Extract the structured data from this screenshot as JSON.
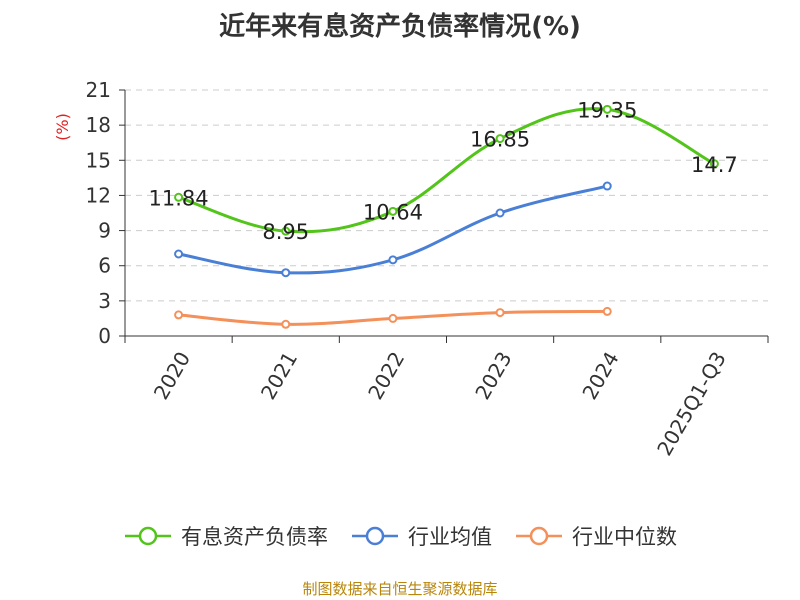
{
  "chart_data": {
    "type": "line",
    "title": "近年来有息资产负债率情况(%)",
    "ylabel": "(%)",
    "categories": [
      "2020",
      "2021",
      "2022",
      "2023",
      "2024",
      "2025Q1-Q3"
    ],
    "ylim": [
      0,
      21
    ],
    "yticks": [
      0,
      3,
      6,
      9,
      12,
      15,
      18,
      21
    ],
    "grid": "horizontal dashed",
    "legend_position": "bottom",
    "series": [
      {
        "name": "有息资产负债率",
        "color": "#52c41a",
        "values": [
          11.84,
          8.95,
          10.64,
          16.85,
          19.35,
          14.7
        ],
        "labels": [
          "11.84",
          "8.95",
          "10.64",
          "16.85",
          "19.35",
          "14.7"
        ]
      },
      {
        "name": "行业均值",
        "color": "#4a7fd6",
        "values": [
          7.0,
          5.4,
          6.5,
          10.5,
          12.8,
          null
        ]
      },
      {
        "name": "行业中位数",
        "color": "#f4905a",
        "values": [
          1.8,
          1.0,
          1.5,
          2.0,
          2.1,
          null
        ]
      }
    ]
  },
  "footer": {
    "source": "制图数据来自恒生聚源数据库"
  }
}
